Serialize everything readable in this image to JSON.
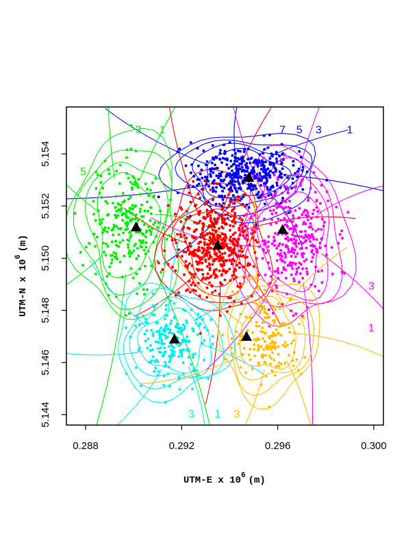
{
  "chart_data": {
    "type": "scatter",
    "title": "",
    "xlabel": "UTM-E x 10",
    "xlabel_exp": "6",
    "xlabel_unit": "(m)",
    "ylabel": "UTM-N x 10",
    "ylabel_exp": "6",
    "ylabel_unit": "(m)",
    "xlim": [
      0.2872,
      0.3004
    ],
    "ylim": [
      5.1436,
      5.1558
    ],
    "x_ticks": [
      0.288,
      0.292,
      0.296,
      0.3
    ],
    "x_tick_labels": [
      "0.288",
      "0.292",
      "0.296",
      "0.300"
    ],
    "y_ticks": [
      5.144,
      5.146,
      5.148,
      5.15,
      5.152,
      5.154
    ],
    "y_tick_labels": [
      "5.144",
      "5.146",
      "5.148",
      "5.150",
      "5.152",
      "5.154"
    ],
    "grid": false,
    "legend": "none",
    "stations": {
      "marker": "triangle",
      "color": "#000000",
      "points": [
        {
          "x": 0.2948,
          "y": 5.1531
        },
        {
          "x": 0.2901,
          "y": 5.1512
        },
        {
          "x": 0.2935,
          "y": 5.1505
        },
        {
          "x": 0.2962,
          "y": 5.1511
        },
        {
          "x": 0.2917,
          "y": 5.1469
        },
        {
          "x": 0.2947,
          "y": 5.147
        }
      ]
    },
    "clusters": [
      {
        "color": "#0000ff",
        "center": [
          0.2946,
          5.1532
        ],
        "spread": [
          0.00105,
          0.00055
        ],
        "count": 420
      },
      {
        "color": "#00ee00",
        "center": [
          0.2897,
          5.1513
        ],
        "spread": [
          0.00075,
          0.0012
        ],
        "count": 260
      },
      {
        "color": "#ff0000",
        "center": [
          0.2934,
          5.1505
        ],
        "spread": [
          0.00075,
          0.0009
        ],
        "count": 520
      },
      {
        "color": "#ff00ff",
        "center": [
          0.2966,
          5.1507
        ],
        "spread": [
          0.0008,
          0.0011
        ],
        "count": 330
      },
      {
        "color": "#00eeee",
        "center": [
          0.2916,
          5.1468
        ],
        "spread": [
          0.0008,
          0.0007
        ],
        "count": 210
      },
      {
        "color": "#ffbb00",
        "center": [
          0.2956,
          5.147
        ],
        "spread": [
          0.0007,
          0.0008
        ],
        "count": 170
      }
    ],
    "contour_labels": [
      {
        "text": "3",
        "color": "#00ee00",
        "x": 0.2902,
        "y": 5.1549
      },
      {
        "text": "1",
        "color": "#00ee00",
        "x": 0.2912,
        "y": 5.1549
      },
      {
        "text": "5",
        "color": "#00ee00",
        "x": 0.2879,
        "y": 5.1533
      },
      {
        "text": "7",
        "color": "#0000ff",
        "x": 0.2962,
        "y": 5.1549
      },
      {
        "text": "5",
        "color": "#0000ff",
        "x": 0.2969,
        "y": 5.1549
      },
      {
        "text": "3",
        "color": "#0000ff",
        "x": 0.2977,
        "y": 5.1549
      },
      {
        "text": "1",
        "color": "#0000ff",
        "x": 0.299,
        "y": 5.1549
      },
      {
        "text": "3",
        "color": "#ff00ff",
        "x": 0.2999,
        "y": 5.1489
      },
      {
        "text": "1",
        "color": "#ff00ff",
        "x": 0.2999,
        "y": 5.1473
      },
      {
        "text": "3",
        "color": "#00eeee",
        "x": 0.2924,
        "y": 5.144
      },
      {
        "text": "1",
        "color": "#00eeee",
        "x": 0.2935,
        "y": 5.144
      },
      {
        "text": "3",
        "color": "#ffbb00",
        "x": 0.2943,
        "y": 5.144
      }
    ]
  }
}
